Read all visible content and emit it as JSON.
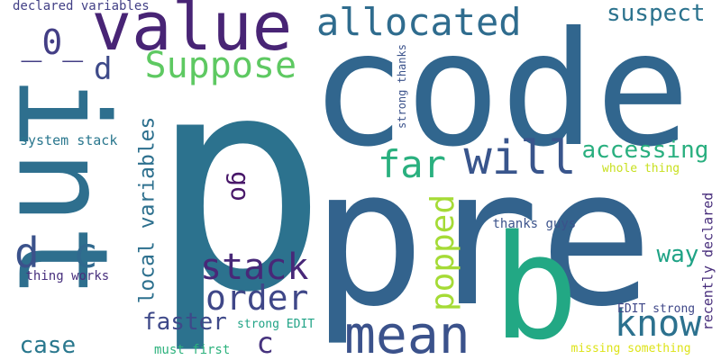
{
  "words": [
    {
      "text": "p",
      "color": "#2c728e"
    },
    {
      "text": "pre",
      "color": "#33638d"
    },
    {
      "text": "code",
      "color": "#31668e"
    },
    {
      "text": "int",
      "color": "#2e6f8e"
    },
    {
      "text": "b",
      "color": "#22a884"
    },
    {
      "text": "value",
      "color": "#482475"
    },
    {
      "text": "mean",
      "color": "#3b528b"
    },
    {
      "text": "allocated",
      "color": "#2f6c8e"
    },
    {
      "text": "Suppose",
      "color": "#5ec962"
    },
    {
      "text": "will",
      "color": "#39558c"
    },
    {
      "text": "far",
      "color": "#2ab07f"
    },
    {
      "text": "accessing",
      "color": "#29af7f"
    },
    {
      "text": "suspect",
      "color": "#2c738e"
    },
    {
      "text": "_0_",
      "color": "#433e85"
    },
    {
      "text": "d",
      "color": "#3e4a89"
    },
    {
      "text": "d",
      "color": "#3b528b"
    },
    {
      "text": "c",
      "color": "#30698e"
    },
    {
      "text": "c",
      "color": "#46337e"
    },
    {
      "text": "stack",
      "color": "#482878"
    },
    {
      "text": "order",
      "color": "#3f4788"
    },
    {
      "text": "popped",
      "color": "#a5db36"
    },
    {
      "text": "know",
      "color": "#2c718e"
    },
    {
      "text": "go",
      "color": "#481769"
    },
    {
      "text": "local variables",
      "color": "#2d708e"
    },
    {
      "text": "faster",
      "color": "#3e4989"
    },
    {
      "text": "case",
      "color": "#2a788e"
    },
    {
      "text": "way",
      "color": "#20a386"
    },
    {
      "text": "system stack",
      "color": "#2a778e"
    },
    {
      "text": "declared variables",
      "color": "#424086"
    },
    {
      "text": "strong thanks",
      "color": "#3b528b"
    },
    {
      "text": "whole thing",
      "color": "#c8e020"
    },
    {
      "text": "recently declared",
      "color": "#472d7b"
    },
    {
      "text": "thanks guys",
      "color": "#3b528b"
    },
    {
      "text": "EDIT strong",
      "color": "#3f4788"
    },
    {
      "text": "thing works",
      "color": "#472f7d"
    },
    {
      "text": "strong EDIT",
      "color": "#20a386"
    },
    {
      "text": "must first",
      "color": "#2db27d"
    },
    {
      "text": "missing something",
      "color": "#dde318"
    }
  ]
}
